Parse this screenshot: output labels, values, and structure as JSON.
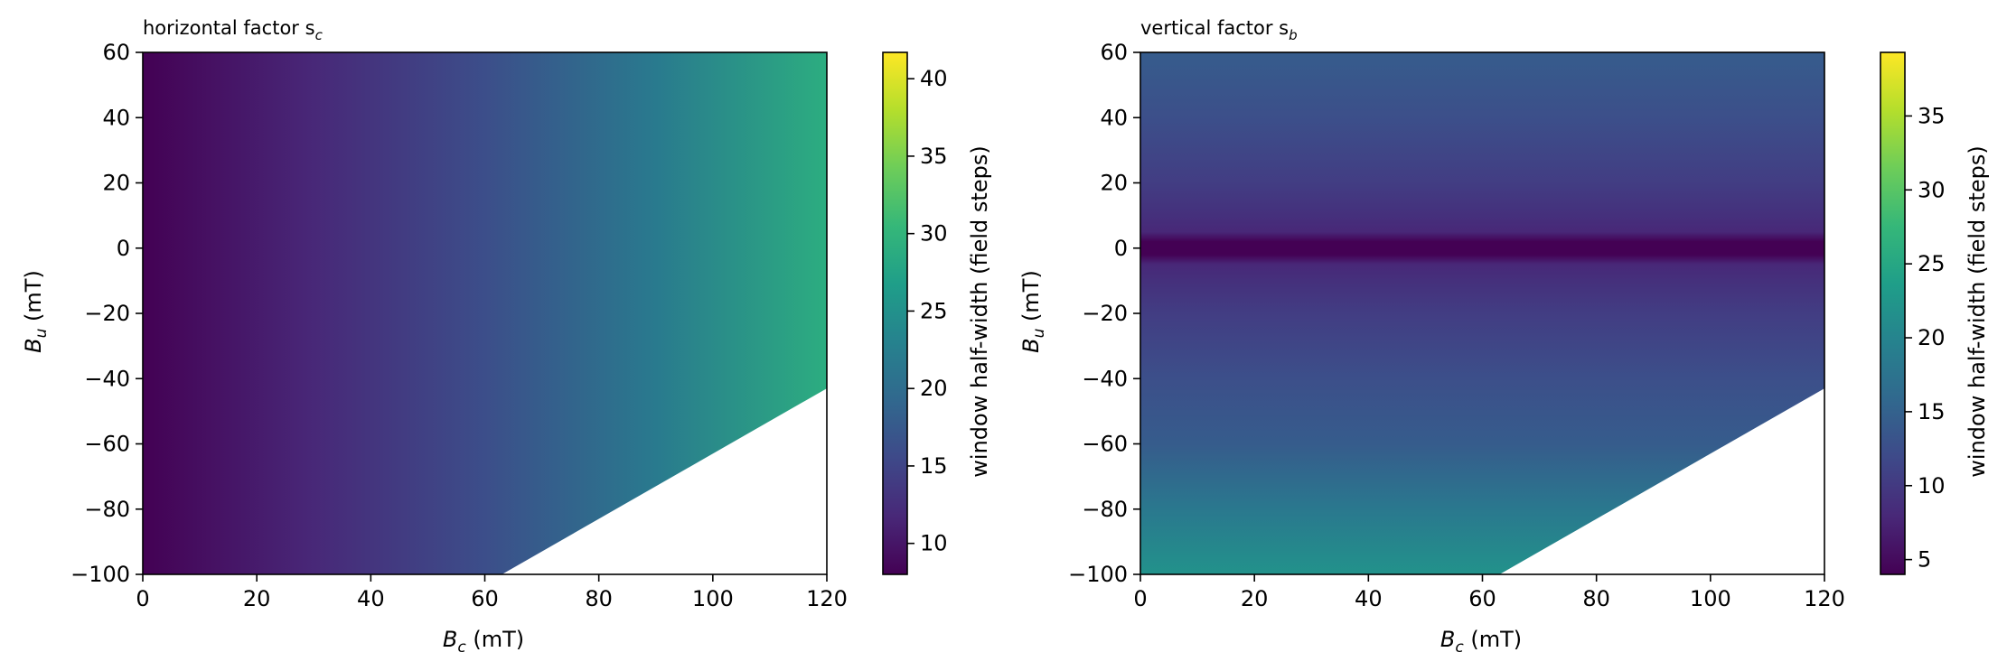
{
  "chart_data": [
    {
      "type": "heatmap",
      "title": "horizontal factor s",
      "title_subscript": "c",
      "xlabel_symbol": "B",
      "xlabel_subscript": "c",
      "xlabel_unit": " (mT)",
      "ylabel_symbol": "B",
      "ylabel_subscript": "u",
      "ylabel_unit": " (mT)",
      "xlim": [
        0,
        120
      ],
      "ylim": [
        -100,
        60
      ],
      "xticks": [
        "0",
        "20",
        "40",
        "60",
        "80",
        "100",
        "120"
      ],
      "xtick_values": [
        0,
        20,
        40,
        60,
        80,
        100,
        120
      ],
      "yticks": [
        "60",
        "40",
        "20",
        "0",
        "−20",
        "−40",
        "−60",
        "−80",
        "−100"
      ],
      "ytick_values": [
        60,
        40,
        20,
        0,
        -20,
        -40,
        -60,
        -80,
        -100
      ],
      "field": "horizontal",
      "masked_region": {
        "boundary_points": [
          [
            63,
            -100
          ],
          [
            120,
            -43
          ]
        ],
        "side": "below-right"
      },
      "colormap": "viridis",
      "colorbar": {
        "label": "window half-width (field steps)",
        "range": [
          8,
          41.7
        ],
        "ticks": [
          "10",
          "15",
          "20",
          "25",
          "30",
          "35",
          "40"
        ],
        "tick_values": [
          10,
          15,
          20,
          25,
          30,
          35,
          40
        ]
      }
    },
    {
      "type": "heatmap",
      "title": "vertical factor s",
      "title_subscript": "b",
      "xlabel_symbol": "B",
      "xlabel_subscript": "c",
      "xlabel_unit": " (mT)",
      "ylabel_symbol": "B",
      "ylabel_subscript": "u",
      "ylabel_unit": " (mT)",
      "xlim": [
        0,
        120
      ],
      "ylim": [
        -100,
        60
      ],
      "xticks": [
        "0",
        "20",
        "40",
        "60",
        "80",
        "100",
        "120"
      ],
      "xtick_values": [
        0,
        20,
        40,
        60,
        80,
        100,
        120
      ],
      "yticks": [
        "60",
        "40",
        "20",
        "0",
        "−20",
        "−40",
        "−60",
        "−80",
        "−100"
      ],
      "ytick_values": [
        60,
        40,
        20,
        0,
        -20,
        -40,
        -60,
        -80,
        -100
      ],
      "field": "vertical",
      "masked_region": {
        "boundary_points": [
          [
            63,
            -100
          ],
          [
            120,
            -43
          ]
        ],
        "side": "below-right"
      },
      "colormap": "viridis",
      "colorbar": {
        "label": "window half-width (field steps)",
        "range": [
          4,
          39.3
        ],
        "ticks": [
          "5",
          "10",
          "15",
          "20",
          "25",
          "30",
          "35"
        ],
        "tick_values": [
          5,
          10,
          15,
          20,
          25,
          30,
          35
        ]
      }
    }
  ]
}
